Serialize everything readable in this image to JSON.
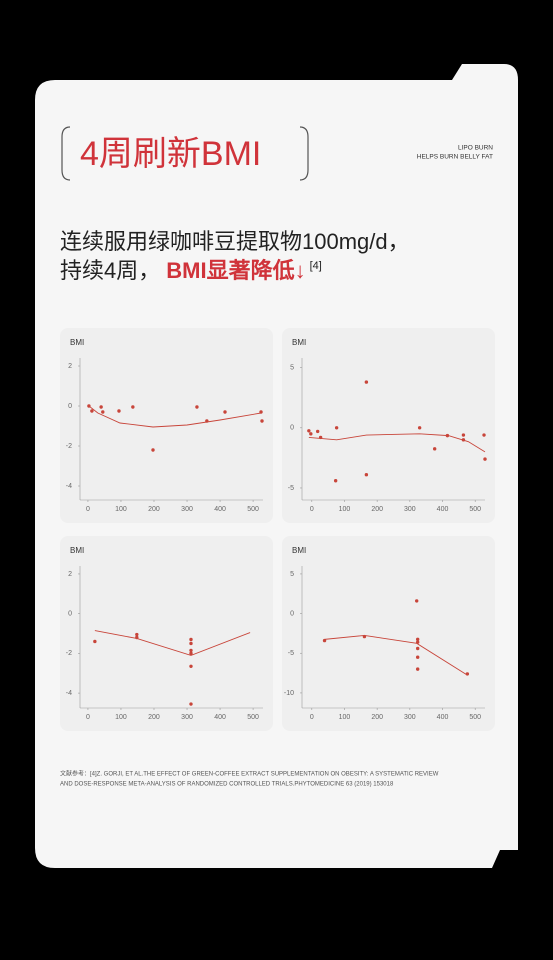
{
  "header": {
    "title": "4周刷新BMI",
    "tag_line1": "LIPO BURN",
    "tag_line2": "HELPS BURN BELLY FAT"
  },
  "headline": {
    "line1": "连续服用绿咖啡豆提取物100mg/d，",
    "line2_plain": "持续4周，",
    "line2_highlight": "BMI显著降低↓",
    "ref_mark": "[4]"
  },
  "chart_data": [
    {
      "type": "scatter",
      "y_label": "BMI",
      "grid": false,
      "xlim": [
        -24,
        530
      ],
      "ylim": [
        -4.7,
        2.4
      ],
      "xticks": [
        0,
        100,
        200,
        300,
        400,
        500
      ],
      "yticks": [
        2,
        0,
        -2,
        -4
      ],
      "series": [
        {
          "type": "scatter",
          "color": "#c8453a",
          "x": [
            3,
            12,
            40,
            45,
            94,
            136,
            197,
            330,
            360,
            415,
            524,
            527
          ],
          "y": [
            0,
            -0.25,
            -0.05,
            -0.3,
            -0.25,
            -0.05,
            -2.2,
            -0.05,
            -0.75,
            -0.3,
            -0.3,
            -0.75
          ]
        },
        {
          "type": "line",
          "color": "#c8453a",
          "x": [
            3,
            30,
            97,
            197,
            300,
            400,
            524
          ],
          "y": [
            0,
            -0.35,
            -0.85,
            -1.05,
            -0.95,
            -0.7,
            -0.35
          ]
        }
      ]
    },
    {
      "type": "scatter",
      "y_label": "BMI",
      "grid": false,
      "xlim": [
        -30,
        530
      ],
      "ylim": [
        -6,
        5.8
      ],
      "xticks": [
        0,
        100,
        200,
        300,
        400,
        500
      ],
      "yticks": [
        5,
        0,
        -5
      ],
      "series": [
        {
          "type": "scatter",
          "color": "#c8453a",
          "x": [
            -9,
            -3,
            18,
            27,
            76,
            73,
            167,
            167,
            330,
            376,
            415,
            464,
            464,
            527,
            530
          ],
          "y": [
            -0.25,
            -0.5,
            -0.3,
            -0.8,
            0,
            -4.4,
            3.8,
            -3.9,
            0,
            -1.75,
            -0.65,
            -0.6,
            -1,
            -0.6,
            -2.6
          ]
        },
        {
          "type": "line",
          "color": "#c8453a",
          "x": [
            -9,
            76,
            167,
            330,
            418,
            479,
            530
          ],
          "y": [
            -0.8,
            -1,
            -0.6,
            -0.5,
            -0.65,
            -1.15,
            -2
          ]
        }
      ]
    },
    {
      "type": "scatter",
      "y_label": "BMI",
      "grid": false,
      "xlim": [
        -24,
        530
      ],
      "ylim": [
        -4.75,
        2.4
      ],
      "xticks": [
        0,
        100,
        200,
        300,
        400,
        500
      ],
      "yticks": [
        2,
        0,
        -2,
        -4
      ],
      "series": [
        {
          "type": "scatter",
          "color": "#c8453a",
          "x": [
            21,
            148,
            148,
            312,
            312,
            312,
            312,
            312,
            312
          ],
          "y": [
            -1.4,
            -1.05,
            -1.2,
            -1.3,
            -1.5,
            -1.85,
            -2,
            -2.65,
            -4.55
          ]
        },
        {
          "type": "line",
          "color": "#c8453a",
          "x": [
            21,
            148,
            312,
            491
          ],
          "y": [
            -0.85,
            -1.25,
            -2.1,
            -0.95
          ]
        }
      ]
    },
    {
      "type": "scatter",
      "y_label": "BMI",
      "grid": false,
      "xlim": [
        -30,
        530
      ],
      "ylim": [
        -11.9,
        6
      ],
      "xticks": [
        0,
        100,
        200,
        300,
        400,
        500
      ],
      "yticks": [
        5,
        0,
        -5,
        -10
      ],
      "series": [
        {
          "type": "scatter",
          "color": "#c8453a",
          "x": [
            39,
            161,
            321,
            324,
            324,
            324,
            324,
            324,
            476
          ],
          "y": [
            -3.4,
            -2.9,
            1.6,
            -3.25,
            -3.6,
            -4.4,
            -5.5,
            -7,
            -7.6
          ]
        },
        {
          "type": "line",
          "color": "#c8453a",
          "x": [
            39,
            161,
            321,
            476
          ],
          "y": [
            -3.25,
            -2.75,
            -3.75,
            -7.75
          ]
        }
      ]
    }
  ],
  "reference": {
    "line1": "文献参考：[4]Z. GORJI, ET AL.THE EFFECT OF GREEN-COFFEE EXTRACT SUPPLEMENTATION ON OBESITY: A SYSTEMATIC REVIEW",
    "line2": "AND DOSE-RESPONSE META-ANALYSIS OF RANDOMIZED CONTROLLED TRIALS.PHYTOMEDICINE 63 (2019) 153018"
  }
}
